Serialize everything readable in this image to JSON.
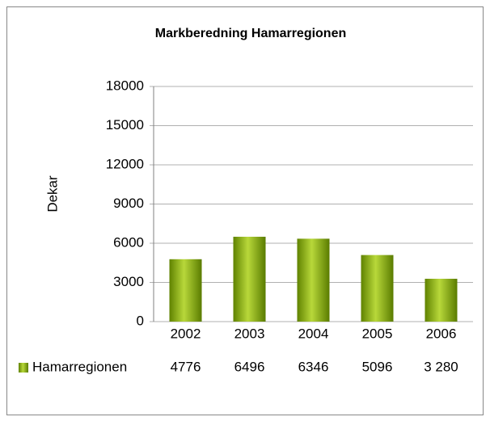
{
  "chart_data": {
    "type": "bar",
    "title": "Markberedning Hamarregionen",
    "y_label": "Dekar",
    "categories": [
      "2002",
      "2003",
      "2004",
      "2005",
      "2006"
    ],
    "series": [
      {
        "name": "Hamarregionen",
        "color": "#7aa300",
        "values": [
          4776,
          6496,
          6346,
          5096,
          3280
        ],
        "value_labels": [
          "4776",
          "6496",
          "6346",
          "5096",
          "3 280"
        ]
      }
    ],
    "ylim": [
      0,
      18000
    ],
    "yticks": [
      0,
      3000,
      6000,
      9000,
      12000,
      15000,
      18000
    ],
    "grid": true
  }
}
